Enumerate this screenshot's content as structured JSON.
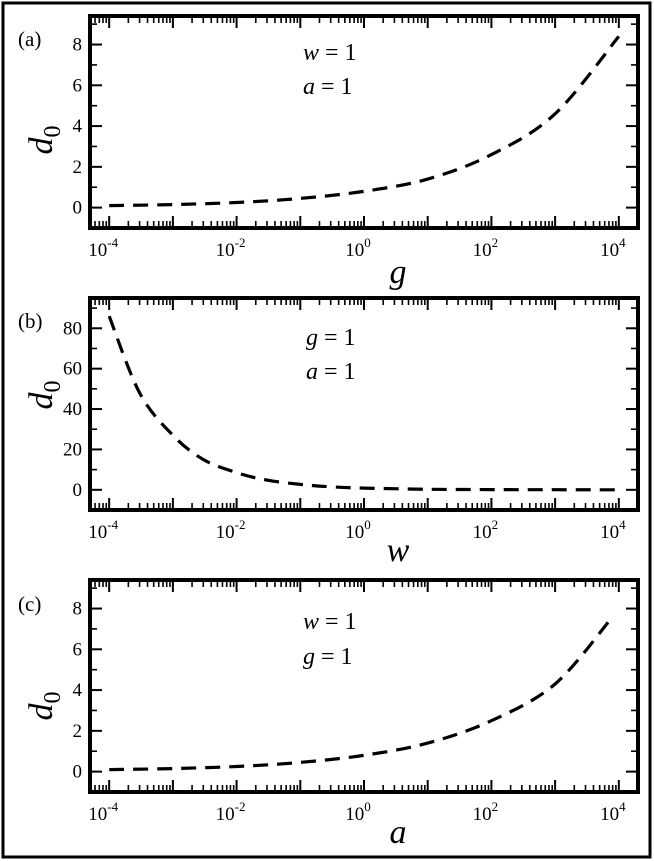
{
  "chart_data": [
    {
      "type": "line",
      "panel_label": "(a)",
      "xlabel": "g",
      "ylabel": "d",
      "ylabel_subscript": "0",
      "xscale": "log",
      "xlim": [
        5e-05,
        20000
      ],
      "ylim": [
        -1,
        9.4
      ],
      "xticks": [
        "10^-4",
        "10^-2",
        "10^0",
        "10^2",
        "10^4"
      ],
      "yticks": [
        0,
        2,
        4,
        6,
        8
      ],
      "annotation": [
        {
          "var": "w",
          "eq": " = 1"
        },
        {
          "var": "a",
          "eq": "  = 1"
        }
      ],
      "line_style": "dashed",
      "series": [
        {
          "x": [
            0.0001,
            0.001,
            0.01,
            0.1,
            1,
            10,
            100,
            1000,
            10000
          ],
          "y": [
            0.1,
            0.15,
            0.25,
            0.45,
            0.8,
            1.4,
            2.6,
            4.6,
            8.4
          ]
        }
      ]
    },
    {
      "type": "line",
      "panel_label": "(b)",
      "xlabel": "w",
      "ylabel": "d",
      "ylabel_subscript": "0",
      "xscale": "log",
      "xlim": [
        5e-05,
        20000
      ],
      "ylim": [
        -10,
        95
      ],
      "xticks": [
        "10^-4",
        "10^-2",
        "10^0",
        "10^2",
        "10^4"
      ],
      "yticks": [
        0,
        20,
        40,
        60,
        80
      ],
      "annotation": [
        {
          "var": "g",
          "eq": "  = 1"
        },
        {
          "var": "a",
          "eq": "  = 1"
        }
      ],
      "line_style": "dashed",
      "series": [
        {
          "x": [
            0.0001,
            0.0003,
            0.001,
            0.003,
            0.01,
            0.03,
            0.1,
            0.3,
            1,
            10,
            100,
            1000,
            10000
          ],
          "y": [
            86,
            48,
            27,
            15,
            8.5,
            4.8,
            2.7,
            1.5,
            0.85,
            0.27,
            0.1,
            0.04,
            0.01
          ]
        }
      ]
    },
    {
      "type": "line",
      "panel_label": "(c)",
      "xlabel": "a",
      "ylabel": "d",
      "ylabel_subscript": "0",
      "xscale": "log",
      "xlim": [
        5e-05,
        20000
      ],
      "ylim": [
        -1,
        9.4
      ],
      "xticks": [
        "10^-4",
        "10^-2",
        "10^0",
        "10^2",
        "10^4"
      ],
      "yticks": [
        0,
        2,
        4,
        6,
        8
      ],
      "annotation": [
        {
          "var": "w",
          "eq": " = 1"
        },
        {
          "var": "g",
          "eq": "  = 1"
        }
      ],
      "line_style": "dashed",
      "series": [
        {
          "x": [
            0.0001,
            0.001,
            0.01,
            0.1,
            1,
            10,
            100,
            1000,
            8000
          ],
          "y": [
            0.1,
            0.15,
            0.25,
            0.45,
            0.8,
            1.4,
            2.5,
            4.3,
            7.6
          ]
        }
      ]
    }
  ]
}
